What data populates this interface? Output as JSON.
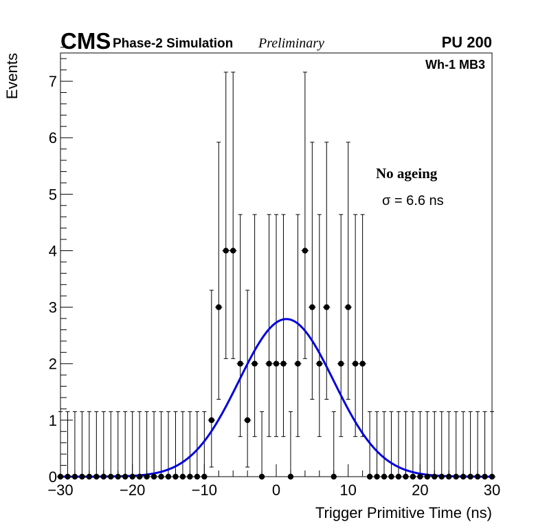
{
  "header": {
    "experiment": "CMS",
    "simulation": "Phase-2 Simulation",
    "status": "Preliminary",
    "pileup": "PU 200",
    "station": "Wh-1 MB3"
  },
  "annotations": {
    "ageing": "No ageing",
    "sigma": "σ = 6.6 ns"
  },
  "chart_data": {
    "type": "scatter",
    "title": "",
    "xlabel": "Trigger Primitive Time (ns)",
    "ylabel": "Events",
    "xlim": [
      -30,
      30
    ],
    "ylim": [
      0,
      7.5
    ],
    "xticks": [
      -30,
      -20,
      -10,
      0,
      10,
      20,
      30
    ],
    "xtick_labels": [
      "−30",
      "−20",
      "−10",
      "0",
      "10",
      "20",
      "30"
    ],
    "yticks": [
      0,
      1,
      2,
      3,
      4,
      5,
      6,
      7
    ],
    "ytick_labels": [
      "0",
      "1",
      "2",
      "3",
      "4",
      "5",
      "6",
      "7"
    ],
    "bin_width": 1,
    "grid": false,
    "series": [
      {
        "kind": "histogram-points",
        "color": "#000000",
        "x": [
          -30,
          -29,
          -28,
          -27,
          -26,
          -25,
          -24,
          -23,
          -22,
          -21,
          -20,
          -19,
          -18,
          -17,
          -16,
          -15,
          -14,
          -13,
          -12,
          -11,
          -10,
          -9,
          -8,
          -7,
          -6,
          -5,
          -4,
          -3,
          -2,
          -1,
          0,
          1,
          2,
          3,
          4,
          5,
          6,
          7,
          8,
          9,
          10,
          11,
          12,
          13,
          14,
          15,
          16,
          17,
          18,
          19,
          20,
          21,
          22,
          23,
          24,
          25,
          26,
          27,
          28,
          29,
          30
        ],
        "y": [
          0,
          0,
          0,
          0,
          0,
          0,
          0,
          0,
          0,
          0,
          0,
          0,
          0,
          0,
          0,
          0,
          0,
          0,
          0,
          0,
          0,
          1,
          3,
          4,
          4,
          2,
          1,
          2,
          0,
          2,
          2,
          2,
          0,
          2,
          4,
          3,
          2,
          3,
          0,
          2,
          3,
          2,
          2,
          0,
          0,
          0,
          0,
          0,
          0,
          0,
          0,
          0,
          0,
          0,
          0,
          0,
          0,
          0,
          0,
          0,
          0
        ],
        "y_err_low": [
          0,
          0,
          0,
          0,
          0,
          0,
          0,
          0,
          0,
          0,
          0,
          0,
          0,
          0,
          0,
          0,
          0,
          0,
          0,
          0,
          0,
          0.83,
          1.63,
          1.91,
          1.91,
          1.29,
          0.83,
          1.29,
          0,
          1.29,
          1.29,
          1.29,
          0,
          1.29,
          1.91,
          1.63,
          1.29,
          1.63,
          0,
          1.29,
          1.63,
          1.29,
          1.29,
          0,
          0,
          0,
          0,
          0,
          0,
          0,
          0,
          0,
          0,
          0,
          0,
          0,
          0,
          0,
          0,
          0,
          0
        ],
        "y_err_high": [
          1.15,
          1.15,
          1.15,
          1.15,
          1.15,
          1.15,
          1.15,
          1.15,
          1.15,
          1.15,
          1.15,
          1.15,
          1.15,
          1.15,
          1.15,
          1.15,
          1.15,
          1.15,
          1.15,
          1.15,
          1.15,
          2.3,
          2.92,
          3.16,
          3.16,
          2.64,
          2.3,
          2.64,
          1.15,
          2.64,
          2.64,
          2.64,
          1.15,
          2.64,
          3.16,
          2.92,
          2.64,
          2.92,
          1.15,
          2.64,
          2.92,
          2.64,
          2.64,
          1.15,
          1.15,
          1.15,
          1.15,
          1.15,
          1.15,
          1.15,
          1.15,
          1.15,
          1.15,
          1.15,
          1.15,
          1.15,
          1.15,
          1.15,
          1.15,
          1.15,
          1.15
        ]
      },
      {
        "kind": "gaussian-fit",
        "color": "#0000dd",
        "amplitude": 2.79,
        "mean": 1.4,
        "sigma": 6.6
      }
    ]
  }
}
